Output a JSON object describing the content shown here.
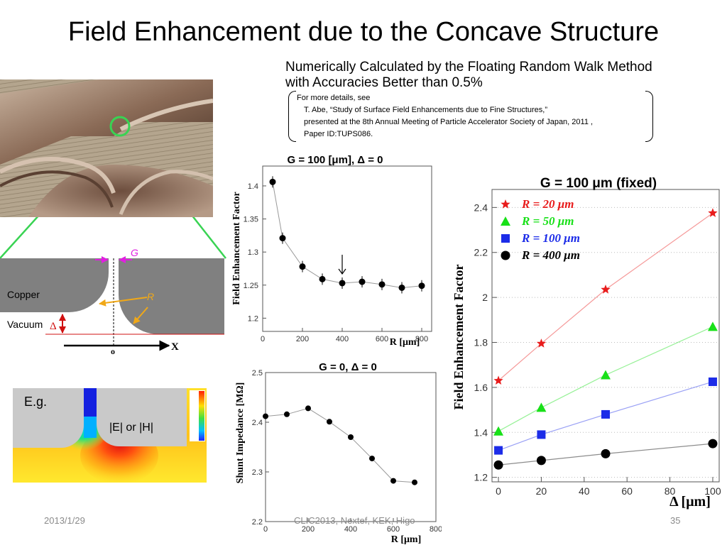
{
  "title": "Field Enhancement due to the Concave Structure",
  "subtitle_line1": "Numerically Calculated by the Floating Random Walk Method",
  "subtitle_line2": "with Accuracies Better than  0.5%",
  "reference": {
    "line1": "For more details, see",
    "line2": "T. Abe, “Study of Surface Field Enhancements due to Fine Structures,”",
    "line3": "presented at the 8th Annual Meeting of Particle Accelerator Society of Japan, 2011 ,",
    "line4": "Paper ID:TUPS086."
  },
  "schematic": {
    "g_label": "G",
    "r_label": "R",
    "copper_label": "Copper",
    "vacuum_label": "Vacuum",
    "delta_symbol": "Δ",
    "origin_label": "o",
    "x_label": "X"
  },
  "field_map": {
    "eg_label": "E.g.",
    "field_label": "|E| or |H|"
  },
  "footer": {
    "date": "2013/1/29",
    "conference": "CLIC2013, Nextef, KEK, Higo",
    "page": "35"
  },
  "colors": {
    "copper_gray": "#808080",
    "schematic_green": "#39d353",
    "arrow_magenta": "#e020e0",
    "arrow_orange": "#f0a818",
    "delta_red": "#d01010"
  },
  "chart_data": [
    {
      "type": "scatter",
      "title": "G = 100 [μm],  Δ = 0",
      "xlabel": "R  [μm]",
      "ylabel": "Field Enhancement Factor",
      "xlim": [
        0,
        850
      ],
      "ylim": [
        1.18,
        1.43
      ],
      "xticks": [
        "0",
        "200",
        "400",
        "600",
        "800"
      ],
      "yticks": [
        "1.2",
        "1.25",
        "1.3",
        "1.35",
        "1.4"
      ],
      "x": [
        50,
        100,
        200,
        300,
        400,
        500,
        600,
        700,
        800
      ],
      "y": [
        1.406,
        1.321,
        1.278,
        1.259,
        1.253,
        1.255,
        1.251,
        1.246,
        1.249
      ],
      "annotation": "arrow at R = 400"
    },
    {
      "type": "line",
      "title": "G = 0,  Δ = 0",
      "xlabel": "R  [μm]",
      "ylabel": "Shunt Impedance  [MΩ]",
      "xlim": [
        0,
        800
      ],
      "ylim": [
        2.2,
        2.5
      ],
      "xticks": [
        "0",
        "200",
        "400",
        "600",
        "800"
      ],
      "yticks": [
        "2.2",
        "2.3",
        "2.4",
        "2.5"
      ],
      "x": [
        0,
        100,
        200,
        300,
        400,
        500,
        600,
        700
      ],
      "y": [
        2.412,
        2.416,
        2.428,
        2.401,
        2.37,
        2.327,
        2.282,
        2.279
      ]
    },
    {
      "type": "line",
      "title": "G = 100 μm (fixed)",
      "xlabel": "Δ  [μm]",
      "ylabel": "Field Enhancement Factor",
      "xlim": [
        -3,
        103
      ],
      "ylim": [
        1.18,
        2.48
      ],
      "xticks": [
        "0",
        "20",
        "40",
        "60",
        "80",
        "100"
      ],
      "yticks": [
        "1.2",
        "1.4",
        "1.6",
        "1.8",
        "2",
        "2.2",
        "2.4"
      ],
      "grid": "dotted horizontal",
      "legend_position": "top-left",
      "x": [
        0,
        20,
        50,
        100
      ],
      "series": [
        {
          "name": "R =  20 μm",
          "color": "#e81c1c",
          "marker": "star",
          "values": [
            1.63,
            1.795,
            2.035,
            2.375
          ]
        },
        {
          "name": "R =  50 μm",
          "color": "#18e018",
          "marker": "triangle",
          "values": [
            1.405,
            1.51,
            1.655,
            1.87
          ]
        },
        {
          "name": "R = 100 μm",
          "color": "#1c2ce8",
          "marker": "square",
          "values": [
            1.32,
            1.39,
            1.48,
            1.625
          ]
        },
        {
          "name": "R = 400 μm",
          "color": "#000000",
          "marker": "circle",
          "values": [
            1.255,
            1.275,
            1.305,
            1.35
          ]
        }
      ]
    }
  ]
}
